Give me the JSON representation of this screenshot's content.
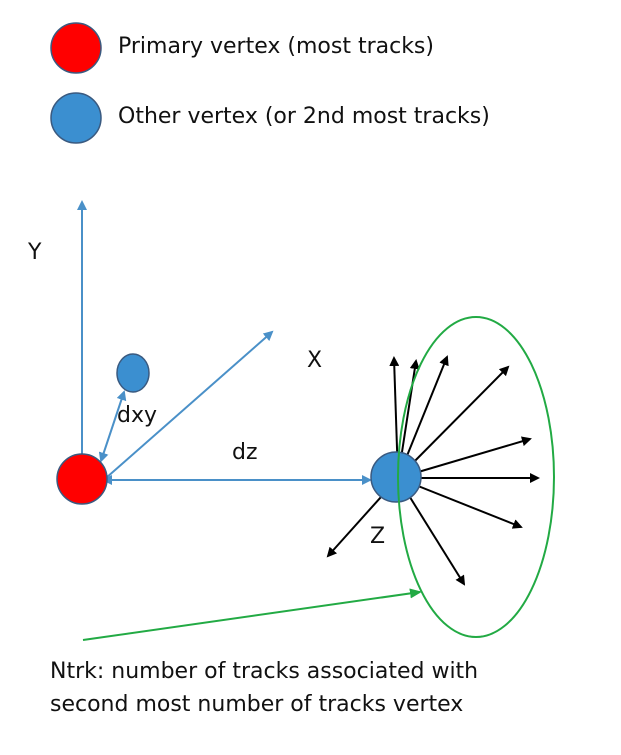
{
  "legend": {
    "primary_label": "Primary vertex (most tracks)",
    "other_label": "Other vertex (or 2nd most tracks)"
  },
  "axes": {
    "y_label": "Y",
    "x_label": "X",
    "z_label": "Z"
  },
  "measures": {
    "dxy_label": "dxy",
    "dz_label": "dz"
  },
  "caption": {
    "line1": "Ntrk: number of tracks associated with",
    "line2": "second most number of tracks vertex"
  },
  "colors": {
    "primary_vertex": "#ff0000",
    "other_vertex": "#3b8fd0",
    "axis_line": "#4a90c8",
    "ellipse": "#22aa44",
    "track": "#000000"
  }
}
